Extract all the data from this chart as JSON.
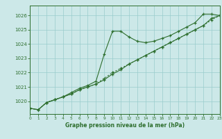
{
  "x": [
    0,
    1,
    2,
    3,
    4,
    5,
    6,
    7,
    8,
    9,
    10,
    11,
    12,
    13,
    14,
    15,
    16,
    17,
    18,
    19,
    20,
    21,
    22,
    23
  ],
  "line1": [
    1019.5,
    1019.4,
    1019.9,
    1020.1,
    1020.3,
    1020.6,
    1020.9,
    1021.1,
    1021.4,
    1023.3,
    1024.9,
    1024.9,
    1024.5,
    1024.2,
    1024.1,
    1024.2,
    1024.4,
    1024.6,
    1024.9,
    1025.2,
    1025.5,
    1026.1,
    1026.1,
    1026.0
  ],
  "line2": [
    1019.5,
    1019.4,
    1019.9,
    1020.1,
    1020.3,
    1020.5,
    1020.8,
    1021.0,
    1021.2,
    1021.5,
    1021.9,
    1022.2,
    1022.6,
    1022.9,
    1023.2,
    1023.5,
    1023.8,
    1024.1,
    1024.4,
    1024.7,
    1025.0,
    1025.3,
    1025.8,
    1026.0
  ],
  "line3": [
    1019.5,
    1019.4,
    1019.9,
    1020.1,
    1020.3,
    1020.5,
    1020.8,
    1021.0,
    1021.2,
    1021.6,
    1022.0,
    1022.3,
    1022.6,
    1022.9,
    1023.2,
    1023.5,
    1023.8,
    1024.1,
    1024.4,
    1024.7,
    1025.0,
    1025.3,
    1025.7,
    1026.0
  ],
  "line_color": "#2d6e2d",
  "bg_color": "#cce8e8",
  "grid_color": "#99cccc",
  "text_color": "#2d6e2d",
  "ylabel_ticks": [
    1020,
    1021,
    1022,
    1023,
    1024,
    1025,
    1026
  ],
  "xlabel": "Graphe pression niveau de la mer (hPa)",
  "ylim": [
    1019.1,
    1026.7
  ],
  "xlim": [
    0,
    23
  ]
}
